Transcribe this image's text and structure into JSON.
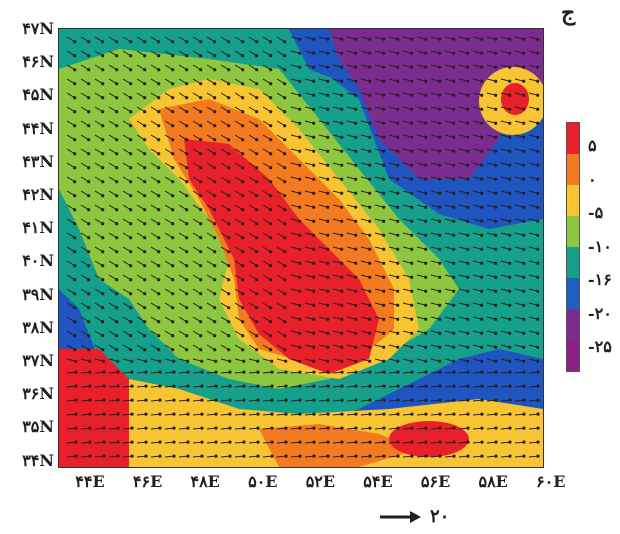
{
  "panel_label": "ج",
  "lat_labels": [
    "۴۷N",
    "۴۶N",
    "۴۵N",
    "۴۴N",
    "۴۳N",
    "۴۲N",
    "۴۱N",
    "۴۰N",
    "۳۹N",
    "۳۸N",
    "۳۷N",
    "۳۶N",
    "۳۵N",
    "۳۴N"
  ],
  "lon_labels": [
    "۴۴E",
    "۴۶E",
    "۴۸E",
    "۵۰E",
    "۵۲E",
    "۵۴E",
    "۵۶E",
    "۵۸E",
    "۶۰E"
  ],
  "colorbar": {
    "labels": [
      "۵",
      "۰",
      "-۵",
      "-۱۰",
      "-۱۶",
      "-۲۰",
      "-۲۵"
    ],
    "colors": [
      "#e8202a",
      "#f47a20",
      "#f7c531",
      "#8dc63f",
      "#16a08a",
      "#1f5fbf",
      "#7b2c8f",
      "#8e1f86"
    ]
  },
  "reference_vector": {
    "value": "۲۰"
  }
}
